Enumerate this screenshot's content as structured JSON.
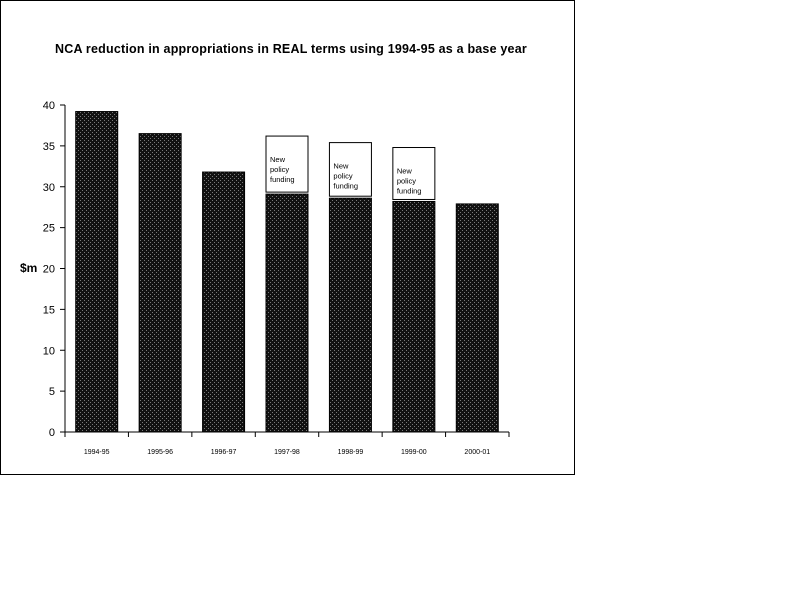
{
  "chart_data": {
    "type": "bar",
    "title": "NCA reduction in appropriations in REAL terms using 1994-95 as a base year",
    "xlabel": "",
    "ylabel": "$m",
    "ylim": [
      0,
      40
    ],
    "yticks": [
      0,
      5,
      10,
      15,
      20,
      25,
      30,
      35,
      40
    ],
    "categories": [
      "1994-95",
      "1995-96",
      "1996-97",
      "1997-98",
      "1998-99",
      "1999-00",
      "2000-01"
    ],
    "series": [
      {
        "values": [
          39.2,
          36.5,
          31.8,
          29.1,
          28.6,
          28.2,
          27.9
        ],
        "color": "#111111"
      },
      {
        "values": [
          0,
          0,
          0,
          7.1,
          6.8,
          6.6,
          0
        ],
        "color": "#ffffff"
      }
    ],
    "annotations": [
      {
        "category": "1997-98",
        "lines": [
          "New",
          "policy",
          "funding"
        ]
      },
      {
        "category": "1998-99",
        "lines": [
          "New",
          "policy",
          "funding"
        ]
      },
      {
        "category": "1999-00",
        "lines": [
          "New",
          "policy",
          "funding"
        ]
      }
    ],
    "grid": false,
    "legend": "none"
  }
}
